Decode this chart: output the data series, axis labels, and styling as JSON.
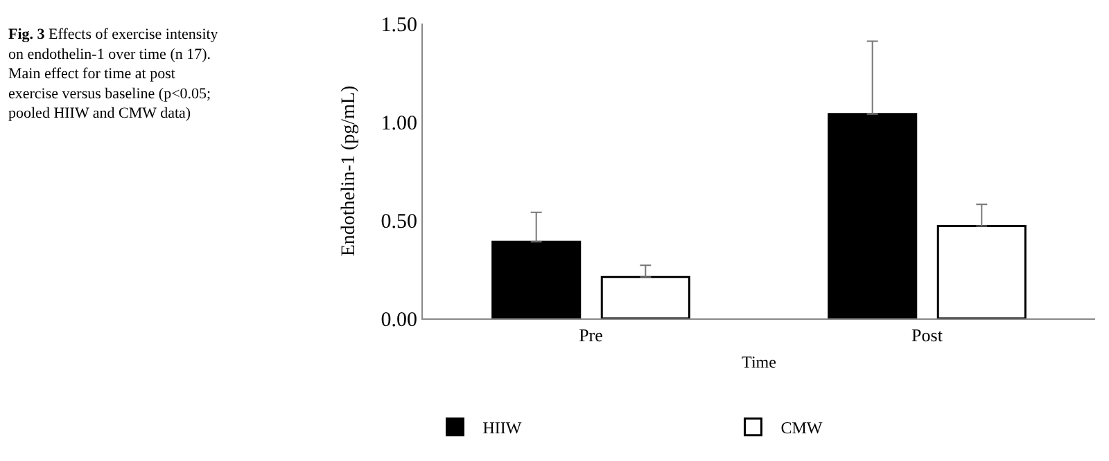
{
  "chart_data": {
    "type": "bar",
    "categories": [
      "Pre",
      "Post"
    ],
    "series": [
      {
        "name": "HIIW",
        "color": "#000000",
        "values": [
          0.39,
          1.04
        ],
        "errors": [
          [
            0.39,
            0.54
          ],
          [
            1.04,
            1.41
          ]
        ]
      },
      {
        "name": "CMW",
        "color": "#ffffff",
        "values": [
          0.21,
          0.47
        ],
        "errors": [
          [
            0.21,
            0.27
          ],
          [
            0.47,
            0.58
          ]
        ]
      }
    ],
    "xlabel": "Time",
    "ylabel": "Endothelin-1 (pg/mL)",
    "ylim": [
      0,
      1.5
    ],
    "yticks": [
      {
        "value": 0,
        "label": "0.00"
      },
      {
        "value": 0.5,
        "label": "0.50"
      },
      {
        "value": 1,
        "label": "1.00"
      },
      {
        "value": 1.5,
        "label": "1.50"
      }
    ],
    "legend": "bottom",
    "annotations": [
      "Fig. 3 Effects of exercise intensity on endothelin-1 over time (n 17). Main effect for time at post exercise versus baseline (p<0.05; pooled HIIW and CMW data)"
    ]
  }
}
